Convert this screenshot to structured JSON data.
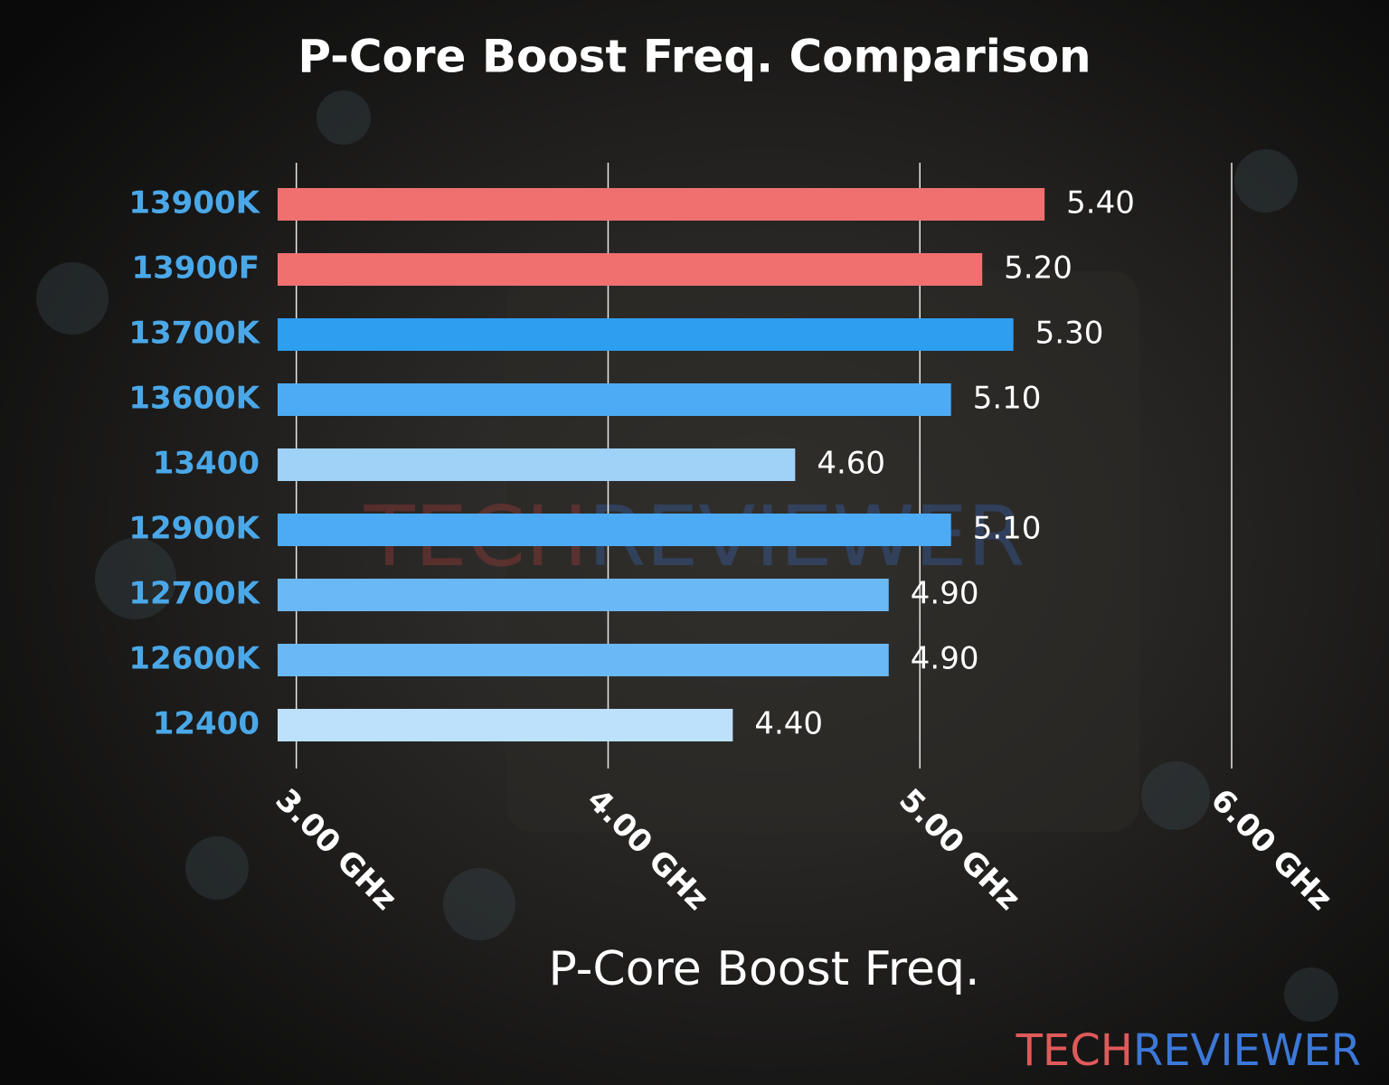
{
  "chart_data": {
    "type": "bar",
    "orientation": "horizontal",
    "title": "P-Core Boost Freq. Comparison",
    "x_label": "P-Core Boost Freq.",
    "categories": [
      "13900K",
      "13900F",
      "13700K",
      "13600K",
      "13400",
      "12900K",
      "12700K",
      "12600K",
      "12400"
    ],
    "values": [
      5.4,
      5.2,
      5.3,
      5.1,
      4.6,
      5.1,
      4.9,
      4.9,
      4.4
    ],
    "value_labels": [
      "5.40",
      "5.20",
      "5.30",
      "5.10",
      "4.60",
      "5.10",
      "4.90",
      "4.90",
      "4.40"
    ],
    "colors": [
      "#f07070",
      "#f07070",
      "#2e9ef0",
      "#4dabf5",
      "#a0d2f8",
      "#4dabf5",
      "#6ab9f6",
      "#6ab9f6",
      "#bde0fb"
    ],
    "xlim": [
      2.94,
      6.0
    ],
    "xticks": [
      {
        "value": 3,
        "label": "3.00 GHz"
      },
      {
        "value": 4,
        "label": "4.00 GHz"
      },
      {
        "value": 5,
        "label": "5.00 GHz"
      },
      {
        "value": 6,
        "label": "6.00 GHz"
      }
    ],
    "grid": true,
    "watermark": [
      "TECH",
      "REVIEWER"
    ]
  }
}
